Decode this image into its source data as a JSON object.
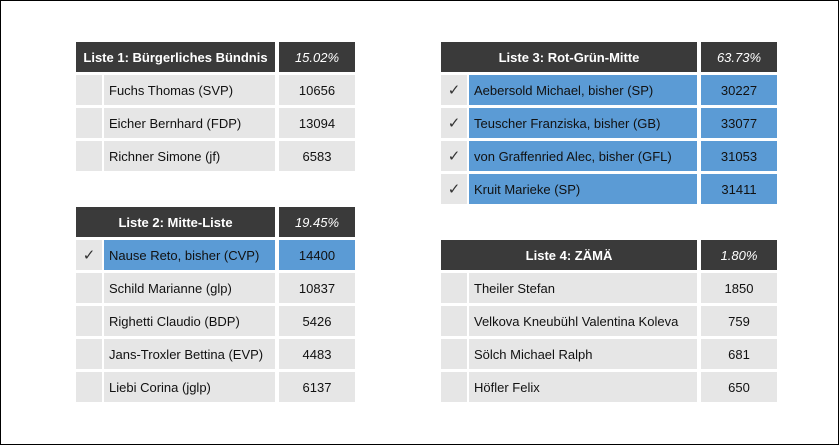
{
  "lists": [
    {
      "title": "Liste 1: Bürgerliches Bündnis",
      "percent": "15.02%",
      "rows": [
        {
          "check": "",
          "name": "Fuchs Thomas (SVP)",
          "votes": "10656",
          "elected": false
        },
        {
          "check": "",
          "name": "Eicher Bernhard (FDP)",
          "votes": "13094",
          "elected": false
        },
        {
          "check": "",
          "name": "Richner Simone (jf)",
          "votes": "6583",
          "elected": false
        }
      ]
    },
    {
      "title": "Liste 2: Mitte-Liste",
      "percent": "19.45%",
      "rows": [
        {
          "check": "✓",
          "name": "Nause Reto, bisher (CVP)",
          "votes": "14400",
          "elected": true
        },
        {
          "check": "",
          "name": "Schild Marianne (glp)",
          "votes": "10837",
          "elected": false
        },
        {
          "check": "",
          "name": "Righetti Claudio (BDP)",
          "votes": "5426",
          "elected": false
        },
        {
          "check": "",
          "name": "Jans-Troxler Bettina (EVP)",
          "votes": "4483",
          "elected": false
        },
        {
          "check": "",
          "name": "Liebi Corina (jglp)",
          "votes": "6137",
          "elected": false
        }
      ]
    },
    {
      "title": "Liste 3: Rot-Grün-Mitte",
      "percent": "63.73%",
      "rows": [
        {
          "check": "✓",
          "name": "Aebersold Michael, bisher (SP)",
          "votes": "30227",
          "elected": true
        },
        {
          "check": "✓",
          "name": "Teuscher Franziska, bisher (GB)",
          "votes": "33077",
          "elected": true
        },
        {
          "check": "✓",
          "name": "von Graffenried Alec, bisher (GFL)",
          "votes": "31053",
          "elected": true
        },
        {
          "check": "✓",
          "name": "Kruit Marieke (SP)",
          "votes": "31411",
          "elected": true
        }
      ]
    },
    {
      "title": "Liste 4: ZÄMÄ",
      "percent": "1.80%",
      "rows": [
        {
          "check": "",
          "name": "Theiler Stefan",
          "votes": "1850",
          "elected": false
        },
        {
          "check": "",
          "name": "Velkova Kneubühl Valentina Koleva",
          "votes": "759",
          "elected": false
        },
        {
          "check": "",
          "name": "Sölch Michael Ralph",
          "votes": "681",
          "elected": false
        },
        {
          "check": "",
          "name": "Höfler Felix",
          "votes": "650",
          "elected": false
        }
      ]
    }
  ]
}
